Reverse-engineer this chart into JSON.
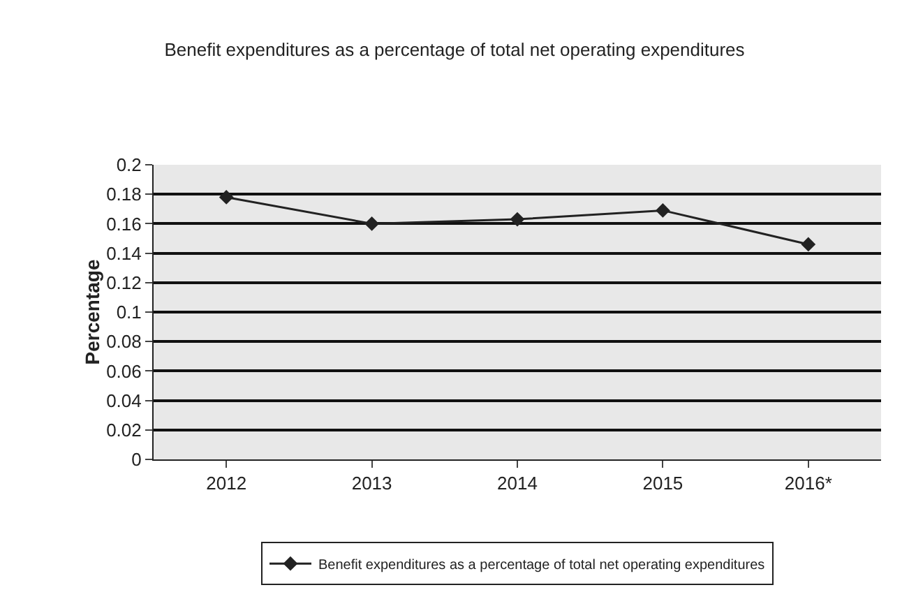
{
  "chart_data": {
    "type": "line",
    "title": "Benefit expenditures as a percentage of total net operating expenditures",
    "ylabel": "Percentage",
    "categories": [
      "2012",
      "2013",
      "2014",
      "2015",
      "2016*"
    ],
    "series": [
      {
        "name": "Benefit expenditures as a percentage of total net operating expenditures",
        "color": "#222222",
        "values": [
          0.178,
          0.16,
          0.163,
          0.169,
          0.146
        ]
      }
    ],
    "ylim": [
      0,
      0.2
    ],
    "yticks": [
      0,
      0.02,
      0.04,
      0.06,
      0.08,
      0.1,
      0.12,
      0.14,
      0.16,
      0.18,
      0.2
    ],
    "grid": "y",
    "legend": "bottom",
    "marker": "diamond",
    "line_style": "solid"
  }
}
